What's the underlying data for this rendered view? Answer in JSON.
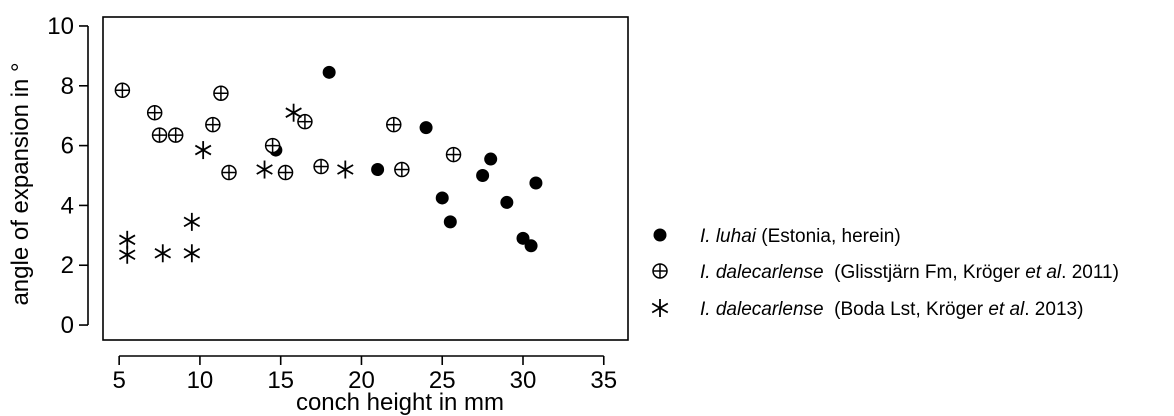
{
  "chart_data": {
    "type": "scatter",
    "xlabel": "conch height in mm",
    "ylabel": "angle of expansion in °",
    "xlim": [
      4,
      36.5
    ],
    "ylim": [
      -0.5,
      10.3
    ],
    "xticks": [
      5,
      10,
      15,
      20,
      25,
      30,
      35
    ],
    "yticks": [
      0,
      2,
      4,
      6,
      8,
      10
    ],
    "grid": false,
    "legend_position": "right",
    "series": [
      {
        "marker": "filled-circle",
        "legend_parts": [
          {
            "text": "I. luhai",
            "italic": true
          },
          {
            "text": " (Estonia, herein)",
            "italic": false
          }
        ],
        "points": [
          [
            14.7,
            5.85
          ],
          [
            18.0,
            8.45
          ],
          [
            21.0,
            5.2
          ],
          [
            24.0,
            6.6
          ],
          [
            25.0,
            4.25
          ],
          [
            25.5,
            3.45
          ],
          [
            27.5,
            5.0
          ],
          [
            28.0,
            5.55
          ],
          [
            29.0,
            4.1
          ],
          [
            30.0,
            2.9
          ],
          [
            30.5,
            2.65
          ],
          [
            30.8,
            4.75
          ]
        ]
      },
      {
        "marker": "circle-plus",
        "legend_parts": [
          {
            "text": "I. dalecarlense",
            "italic": true
          },
          {
            "text": "  (Glisstjärn Fm, Kröger ",
            "italic": false
          },
          {
            "text": "et al",
            "italic": true
          },
          {
            "text": ". 2011)",
            "italic": false
          }
        ],
        "points": [
          [
            5.2,
            7.85
          ],
          [
            7.2,
            7.1
          ],
          [
            7.5,
            6.35
          ],
          [
            8.5,
            6.35
          ],
          [
            10.8,
            6.7
          ],
          [
            11.3,
            7.75
          ],
          [
            11.8,
            5.1
          ],
          [
            14.5,
            6.0
          ],
          [
            15.3,
            5.1
          ],
          [
            16.5,
            6.8
          ],
          [
            17.5,
            5.3
          ],
          [
            22.0,
            6.7
          ],
          [
            22.5,
            5.2
          ],
          [
            25.7,
            5.7
          ]
        ]
      },
      {
        "marker": "asterisk",
        "legend_parts": [
          {
            "text": "I. dalecarlense",
            "italic": true
          },
          {
            "text": "  (Boda Lst, Kröger ",
            "italic": false
          },
          {
            "text": "et al",
            "italic": true
          },
          {
            "text": ". 2013)",
            "italic": false
          }
        ],
        "points": [
          [
            5.5,
            2.85
          ],
          [
            5.5,
            2.35
          ],
          [
            7.7,
            2.4
          ],
          [
            9.5,
            3.45
          ],
          [
            9.5,
            2.4
          ],
          [
            10.2,
            5.85
          ],
          [
            14.0,
            5.2
          ],
          [
            15.8,
            7.1
          ],
          [
            19.0,
            5.2
          ]
        ]
      }
    ]
  }
}
